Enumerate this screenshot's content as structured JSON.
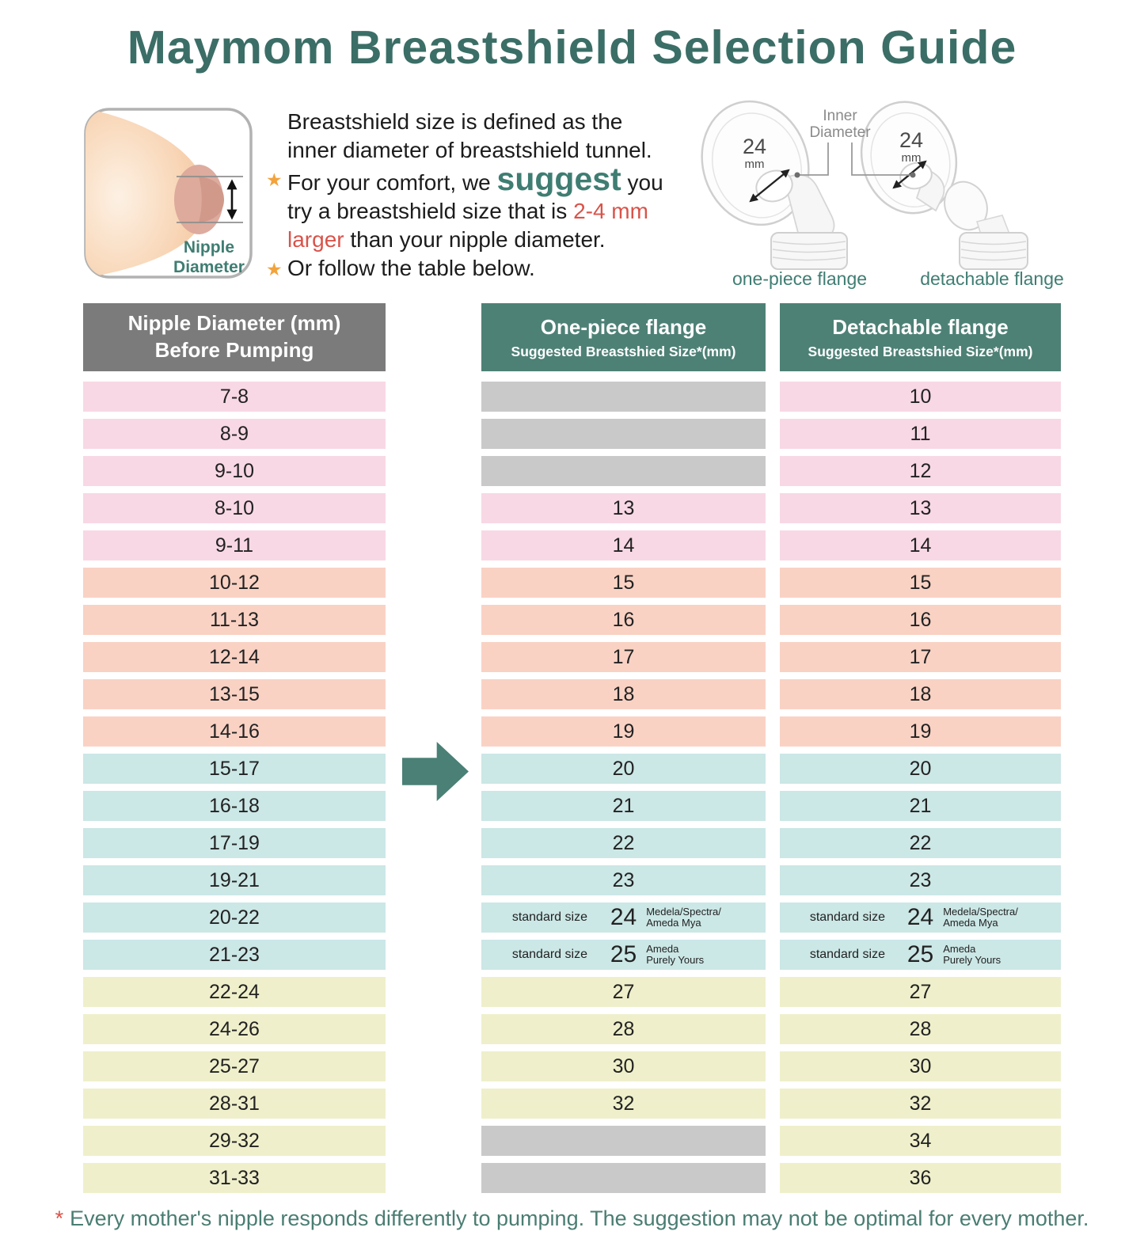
{
  "title": "Maymom Breastshield Selection Guide",
  "intro": {
    "line1": "Breastshield size is defined as the",
    "line2": "inner diameter of breastshield tunnel.",
    "star": "★",
    "b1_pre": "For your comfort, we",
    "b1_suggest": "suggest",
    "b1_post": "you",
    "b1_line2": "try a breastshield size that is",
    "b1_red": "2-4 mm",
    "b1_line3_red": "larger",
    "b1_line3": "than your nipple diameter.",
    "b2": "Or follow the table below."
  },
  "diagram": {
    "label_line1": "Nipple",
    "label_line2": "Diameter"
  },
  "flanges": {
    "inner_diameter_line1": "Inner",
    "inner_diameter_line2": "Diameter",
    "size": "24",
    "unit": "mm",
    "one_piece_caption": "one-piece flange",
    "detachable_caption": "detachable flange"
  },
  "table": {
    "col1_header": [
      "Nipple Diameter (mm)",
      "Before Pumping"
    ],
    "col2_header": [
      "One-piece flange",
      "Suggested Breastshied Size*(mm)"
    ],
    "col3_header": [
      "Detachable flange",
      "Suggested Breastshied Size*(mm)"
    ],
    "rows": [
      {
        "nipple": "7-8",
        "one_piece": null,
        "detachable": "10",
        "color": "pink"
      },
      {
        "nipple": "8-9",
        "one_piece": null,
        "detachable": "11",
        "color": "pink"
      },
      {
        "nipple": "9-10",
        "one_piece": null,
        "detachable": "12",
        "color": "pink"
      },
      {
        "nipple": "8-10",
        "one_piece": "13",
        "detachable": "13",
        "color": "pink"
      },
      {
        "nipple": "9-11",
        "one_piece": "14",
        "detachable": "14",
        "color": "pink"
      },
      {
        "nipple": "10-12",
        "one_piece": "15",
        "detachable": "15",
        "color": "salmon"
      },
      {
        "nipple": "11-13",
        "one_piece": "16",
        "detachable": "16",
        "color": "salmon"
      },
      {
        "nipple": "12-14",
        "one_piece": "17",
        "detachable": "17",
        "color": "salmon"
      },
      {
        "nipple": "13-15",
        "one_piece": "18",
        "detachable": "18",
        "color": "salmon"
      },
      {
        "nipple": "14-16",
        "one_piece": "19",
        "detachable": "19",
        "color": "salmon"
      },
      {
        "nipple": "15-17",
        "one_piece": "20",
        "detachable": "20",
        "color": "blue"
      },
      {
        "nipple": "16-18",
        "one_piece": "21",
        "detachable": "21",
        "color": "blue"
      },
      {
        "nipple": "17-19",
        "one_piece": "22",
        "detachable": "22",
        "color": "blue"
      },
      {
        "nipple": "19-21",
        "one_piece": "23",
        "detachable": "23",
        "color": "blue"
      },
      {
        "nipple": "20-22",
        "one_piece": "24",
        "detachable": "24",
        "color": "blue",
        "note_left": "standard size",
        "note_right": [
          "Medela/Spectra/",
          "Ameda Mya"
        ]
      },
      {
        "nipple": "21-23",
        "one_piece": "25",
        "detachable": "25",
        "color": "blue",
        "note_left": "standard size",
        "note_right": [
          "Ameda",
          "Purely Yours"
        ]
      },
      {
        "nipple": "22-24",
        "one_piece": "27",
        "detachable": "27",
        "color": "yellow"
      },
      {
        "nipple": "24-26",
        "one_piece": "28",
        "detachable": "28",
        "color": "yellow"
      },
      {
        "nipple": "25-27",
        "one_piece": "30",
        "detachable": "30",
        "color": "yellow"
      },
      {
        "nipple": "28-31",
        "one_piece": "32",
        "detachable": "32",
        "color": "yellow"
      },
      {
        "nipple": "29-32",
        "one_piece": null,
        "detachable": "34",
        "color": "yellow"
      },
      {
        "nipple": "31-33",
        "one_piece": null,
        "detachable": "36",
        "color": "yellow"
      }
    ]
  },
  "footnote": {
    "star": "*",
    "text": "Every mother's nipple responds differently to pumping. The suggestion may not be optimal for every mother."
  },
  "colors": {
    "title_teal": "#3b6e66",
    "header_teal": "#4e8176",
    "header_gray": "#7b7b7b",
    "pink": "#f8d8e5",
    "salmon": "#f9d2c4",
    "blue": "#cbe7e6",
    "yellow": "#eff0cb",
    "gray_cell": "#c9c9c9",
    "arrow_teal": "#4a8076",
    "accent_red": "#d9534a",
    "star_orange": "#f2a33c",
    "caption_teal": "#3f7d72",
    "footnote_teal": "#4a7d72"
  }
}
